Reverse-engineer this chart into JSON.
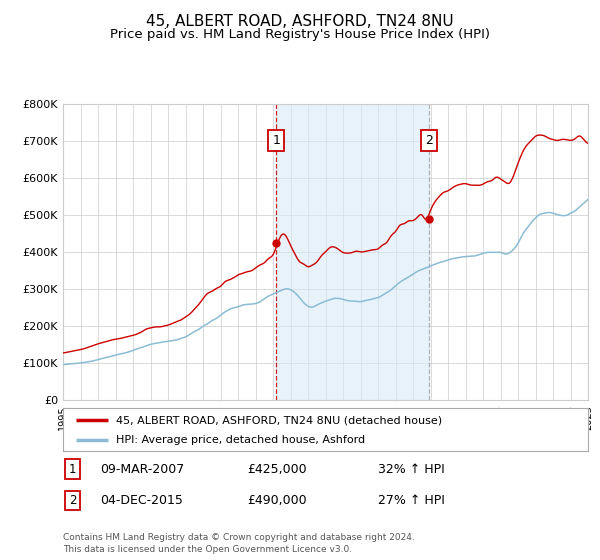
{
  "title": "45, ALBERT ROAD, ASHFORD, TN24 8NU",
  "subtitle": "Price paid vs. HM Land Registry's House Price Index (HPI)",
  "title_fontsize": 11,
  "subtitle_fontsize": 9.5,
  "x_start_year": 1995,
  "x_end_year": 2025,
  "y_min": 0,
  "y_max": 800000,
  "y_ticks": [
    0,
    100000,
    200000,
    300000,
    400000,
    500000,
    600000,
    700000,
    800000
  ],
  "y_tick_labels": [
    "£0",
    "£100K",
    "£200K",
    "£300K",
    "£400K",
    "£500K",
    "£600K",
    "£700K",
    "£800K"
  ],
  "event1_year": 2007.18,
  "event1_price": 425000,
  "event2_year": 2015.92,
  "event2_price": 490000,
  "event1_date": "09-MAR-2007",
  "event2_date": "04-DEC-2015",
  "event1_pct": "32% ↑ HPI",
  "event2_pct": "27% ↑ HPI",
  "shade_color": "#d8eaf7",
  "shade_alpha": 0.6,
  "hpi_line_color": "#8bbcd4",
  "price_line_color": "#cc0000",
  "grid_color": "#cccccc",
  "legend_label1": "45, ALBERT ROAD, ASHFORD, TN24 8NU (detached house)",
  "legend_label2": "HPI: Average price, detached house, Ashford",
  "footnote": "Contains HM Land Registry data © Crown copyright and database right 2024.\nThis data is licensed under the Open Government Licence v3.0.",
  "hpi_data_x": [
    1995.0,
    1995.25,
    1995.5,
    1995.75,
    1996.0,
    1996.25,
    1996.5,
    1996.75,
    1997.0,
    1997.25,
    1997.5,
    1997.75,
    1998.0,
    1998.25,
    1998.5,
    1998.75,
    1999.0,
    1999.25,
    1999.5,
    1999.75,
    2000.0,
    2000.25,
    2000.5,
    2000.75,
    2001.0,
    2001.25,
    2001.5,
    2001.75,
    2002.0,
    2002.25,
    2002.5,
    2002.75,
    2003.0,
    2003.25,
    2003.5,
    2003.75,
    2004.0,
    2004.25,
    2004.5,
    2004.75,
    2005.0,
    2005.25,
    2005.5,
    2005.75,
    2006.0,
    2006.25,
    2006.5,
    2006.75,
    2007.0,
    2007.25,
    2007.5,
    2007.75,
    2008.0,
    2008.25,
    2008.5,
    2008.75,
    2009.0,
    2009.25,
    2009.5,
    2009.75,
    2010.0,
    2010.25,
    2010.5,
    2010.75,
    2011.0,
    2011.25,
    2011.5,
    2011.75,
    2012.0,
    2012.25,
    2012.5,
    2012.75,
    2013.0,
    2013.25,
    2013.5,
    2013.75,
    2014.0,
    2014.25,
    2014.5,
    2014.75,
    2015.0,
    2015.25,
    2015.5,
    2015.75,
    2016.0,
    2016.25,
    2016.5,
    2016.75,
    2017.0,
    2017.25,
    2017.5,
    2017.75,
    2018.0,
    2018.25,
    2018.5,
    2018.75,
    2019.0,
    2019.25,
    2019.5,
    2019.75,
    2020.0,
    2020.25,
    2020.5,
    2020.75,
    2021.0,
    2021.25,
    2021.5,
    2021.75,
    2022.0,
    2022.25,
    2022.5,
    2022.75,
    2023.0,
    2023.25,
    2023.5,
    2023.75,
    2024.0,
    2024.25,
    2024.5,
    2024.75,
    2025.0
  ],
  "hpi_data_y": [
    96000,
    97000,
    98500,
    100000,
    101000,
    103000,
    105000,
    107000,
    110000,
    113000,
    116000,
    119000,
    122000,
    125000,
    128000,
    131000,
    135000,
    139000,
    143000,
    147000,
    151000,
    153000,
    155000,
    157000,
    159000,
    162000,
    165000,
    168000,
    172000,
    178000,
    185000,
    192000,
    200000,
    208000,
    216000,
    223000,
    230000,
    237000,
    243000,
    248000,
    252000,
    256000,
    259000,
    261000,
    264000,
    268000,
    273000,
    279000,
    285000,
    291000,
    296000,
    299000,
    298000,
    290000,
    278000,
    265000,
    255000,
    252000,
    256000,
    262000,
    268000,
    273000,
    275000,
    274000,
    272000,
    271000,
    270000,
    269000,
    268000,
    269000,
    271000,
    273000,
    276000,
    281000,
    288000,
    297000,
    308000,
    318000,
    327000,
    334000,
    340000,
    346000,
    352000,
    358000,
    364000,
    368000,
    371000,
    372000,
    375000,
    379000,
    382000,
    385000,
    387000,
    389000,
    390000,
    391000,
    393000,
    396000,
    399000,
    401000,
    400000,
    395000,
    398000,
    408000,
    425000,
    445000,
    462000,
    475000,
    490000,
    500000,
    505000,
    505000,
    502000,
    500000,
    499000,
    500000,
    505000,
    512000,
    520000,
    530000,
    540000
  ],
  "price_data_x": [
    1995.0,
    1995.25,
    1995.5,
    1995.75,
    1996.0,
    1996.25,
    1996.5,
    1996.75,
    1997.0,
    1997.25,
    1997.5,
    1997.75,
    1998.0,
    1998.25,
    1998.5,
    1998.75,
    1999.0,
    1999.25,
    1999.5,
    1999.75,
    2000.0,
    2000.25,
    2000.5,
    2000.75,
    2001.0,
    2001.25,
    2001.5,
    2001.75,
    2002.0,
    2002.25,
    2002.5,
    2002.75,
    2003.0,
    2003.25,
    2003.5,
    2003.75,
    2004.0,
    2004.25,
    2004.5,
    2004.75,
    2005.0,
    2005.25,
    2005.5,
    2005.75,
    2006.0,
    2006.25,
    2006.5,
    2006.75,
    2007.0,
    2007.25,
    2007.5,
    2007.75,
    2008.0,
    2008.25,
    2008.5,
    2008.75,
    2009.0,
    2009.25,
    2009.5,
    2009.75,
    2010.0,
    2010.25,
    2010.5,
    2010.75,
    2011.0,
    2011.25,
    2011.5,
    2011.75,
    2012.0,
    2012.25,
    2012.5,
    2012.75,
    2013.0,
    2013.25,
    2013.5,
    2013.75,
    2014.0,
    2014.25,
    2014.5,
    2014.75,
    2015.0,
    2015.25,
    2015.5,
    2015.75,
    2016.0,
    2016.25,
    2016.5,
    2016.75,
    2017.0,
    2017.25,
    2017.5,
    2017.75,
    2018.0,
    2018.25,
    2018.5,
    2018.75,
    2019.0,
    2019.25,
    2019.5,
    2019.75,
    2020.0,
    2020.25,
    2020.5,
    2020.75,
    2021.0,
    2021.25,
    2021.5,
    2021.75,
    2022.0,
    2022.25,
    2022.5,
    2022.75,
    2023.0,
    2023.25,
    2023.5,
    2023.75,
    2024.0,
    2024.25,
    2024.5,
    2024.75,
    2025.0
  ],
  "price_data_y": [
    128000,
    130000,
    132000,
    134000,
    136000,
    139000,
    143000,
    147000,
    152000,
    156000,
    160000,
    163000,
    166000,
    169000,
    172000,
    175000,
    178000,
    182000,
    187000,
    192000,
    196000,
    199000,
    201000,
    203000,
    205000,
    209000,
    214000,
    220000,
    227000,
    237000,
    248000,
    260000,
    272000,
    283000,
    292000,
    300000,
    307000,
    315000,
    323000,
    330000,
    336000,
    341000,
    345000,
    349000,
    355000,
    363000,
    373000,
    385000,
    398000,
    425000,
    448000,
    440000,
    418000,
    395000,
    375000,
    365000,
    360000,
    365000,
    375000,
    388000,
    400000,
    408000,
    410000,
    408000,
    405000,
    402000,
    400000,
    399000,
    398000,
    400000,
    403000,
    407000,
    412000,
    420000,
    430000,
    442000,
    456000,
    468000,
    478000,
    485000,
    490000,
    498000,
    508000,
    490000,
    510000,
    530000,
    548000,
    560000,
    570000,
    578000,
    582000,
    583000,
    582000,
    582000,
    582000,
    583000,
    585000,
    588000,
    591000,
    594000,
    592000,
    585000,
    590000,
    610000,
    640000,
    668000,
    688000,
    700000,
    710000,
    715000,
    712000,
    705000,
    698000,
    695000,
    694000,
    696000,
    700000,
    707000,
    714000,
    710000,
    700000
  ]
}
